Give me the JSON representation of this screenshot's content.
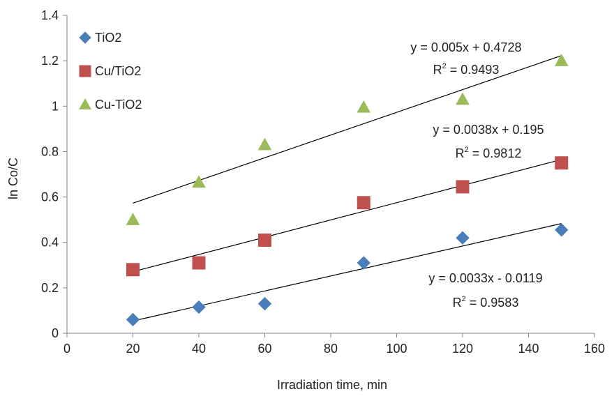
{
  "chart_data": {
    "type": "scatter",
    "xlabel": "Irradiation time, min",
    "ylabel": "ln Co/C",
    "xlim": [
      0,
      160
    ],
    "ylim": [
      0,
      1.4
    ],
    "xticks": [
      "0",
      "20",
      "40",
      "60",
      "80",
      "100",
      "120",
      "140",
      "160"
    ],
    "yticks": [
      "0",
      "0.2",
      "0.4",
      "0.6",
      "0.8",
      "1",
      "1.2",
      "1.4"
    ],
    "grid": false,
    "legend_position": "top-left",
    "series": [
      {
        "name": "TiO2",
        "marker": "diamond",
        "color": "#4a7ebb",
        "x": [
          20,
          40,
          60,
          90,
          120,
          150
        ],
        "y": [
          0.06,
          0.115,
          0.13,
          0.31,
          0.42,
          0.455
        ],
        "fit": {
          "slope": 0.0033,
          "intercept": -0.0119
        },
        "equation": "y = 0.0033x - 0.0119",
        "r2_label": "R",
        "r2_sup": "2",
        "r2_value": " = 0.9583"
      },
      {
        "name": "Cu/TiO2",
        "marker": "square",
        "color": "#c0504d",
        "x": [
          20,
          40,
          60,
          90,
          120,
          150
        ],
        "y": [
          0.28,
          0.31,
          0.41,
          0.575,
          0.645,
          0.75
        ],
        "fit": {
          "slope": 0.0038,
          "intercept": 0.195
        },
        "equation": "y = 0.0038x + 0.195",
        "r2_label": "R",
        "r2_sup": "2",
        "r2_value": " = 0.9812"
      },
      {
        "name": "Cu-TiO2",
        "marker": "triangle",
        "color": "#9bbb59",
        "x": [
          20,
          40,
          60,
          90,
          120,
          150
        ],
        "y": [
          0.5,
          0.665,
          0.83,
          0.995,
          1.03,
          1.2
        ],
        "fit": {
          "slope": 0.005,
          "intercept": 0.4728
        },
        "equation": "y = 0.005x + 0.4728",
        "r2_label": "R",
        "r2_sup": "2",
        "r2_value": " = 0.9493"
      }
    ]
  }
}
